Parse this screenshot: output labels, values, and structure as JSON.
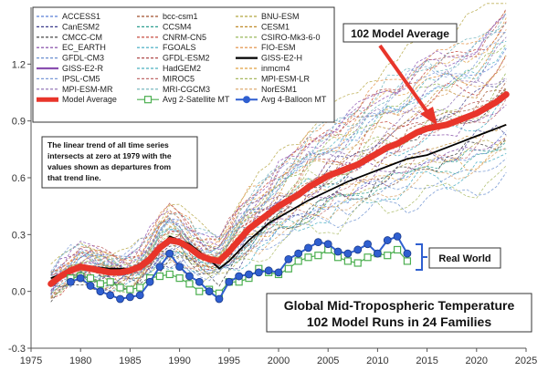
{
  "chart_data": {
    "type": "line",
    "title": "Global Mid-Tropospheric Temperature",
    "subtitle": "102 Model Runs in 24 Families",
    "xlabel": "",
    "ylabel": "",
    "xlim": [
      1975,
      2025
    ],
    "ylim": [
      -0.3,
      1.5
    ],
    "x_ticks": [
      1975,
      1980,
      1985,
      1990,
      1995,
      2000,
      2005,
      2010,
      2015,
      2020,
      2025
    ],
    "y_ticks": [
      -0.3,
      0.0,
      0.3,
      0.6,
      0.9,
      1.2
    ],
    "y_tick_labels": [
      "-0.3",
      "0.0",
      "0.3",
      "0.6",
      "0.9",
      "1.2"
    ],
    "grid": false,
    "note": "The linear trend of all time series intersects at zero at 1979 with the values shown as departures from that trend line.",
    "note_lines": [
      "The linear trend of all time series",
      "intersects at zero at 1979 with the",
      "values shown as departures from",
      "that trend line."
    ],
    "annotations": {
      "model_average_label": "102 Model Average",
      "real_world_label": "Real World"
    },
    "legend_entries": [
      {
        "name": "ACCESS1",
        "color": "#5b7fd6",
        "style": "dashed"
      },
      {
        "name": "bcc-csm1",
        "color": "#a0522d",
        "style": "dashed"
      },
      {
        "name": "BNU-ESM",
        "color": "#b5a642",
        "style": "dashed"
      },
      {
        "name": "CanESM2",
        "color": "#3a3a8a",
        "style": "dashed"
      },
      {
        "name": "CCSM4",
        "color": "#2a9d8f",
        "style": "dashed"
      },
      {
        "name": "CESM1",
        "color": "#c08a2a",
        "style": "dashed"
      },
      {
        "name": "CMCC-CM",
        "color": "#333333",
        "style": "dashed"
      },
      {
        "name": "CNRM-CN5",
        "color": "#c0392b",
        "style": "dashed"
      },
      {
        "name": "CSIRO-Mk3-6-0",
        "color": "#8db04a",
        "style": "dashed"
      },
      {
        "name": "EC_EARTH",
        "color": "#7b3fa0",
        "style": "dashed"
      },
      {
        "name": "FGOALS",
        "color": "#3aa8c0",
        "style": "dashed"
      },
      {
        "name": "FIO-ESM",
        "color": "#e08a3a",
        "style": "dashed"
      },
      {
        "name": "GFDL-CM3",
        "color": "#6a8fd0",
        "style": "dashed"
      },
      {
        "name": "GFDL-ESM2",
        "color": "#b04a4a",
        "style": "dashed"
      },
      {
        "name": "GISS-E2-H",
        "color": "#000000",
        "style": "solid"
      },
      {
        "name": "GISS-E2-R",
        "color": "#8a4fb0",
        "style": "solid"
      },
      {
        "name": "HadGEM2",
        "color": "#4ab0c0",
        "style": "dashed"
      },
      {
        "name": "inmcm4",
        "color": "#e0a040",
        "style": "dashed"
      },
      {
        "name": "IPSL-CM5",
        "color": "#7a9ad8",
        "style": "dashed"
      },
      {
        "name": "MIROC5",
        "color": "#c06a6a",
        "style": "dashed"
      },
      {
        "name": "MPI-ESM-LR",
        "color": "#a8b860",
        "style": "dashed"
      },
      {
        "name": "MPI-ESM-MR",
        "color": "#8a6ab0",
        "style": "dashed"
      },
      {
        "name": "MRI-CGCM3",
        "color": "#6ab0b8",
        "style": "dashed"
      },
      {
        "name": "NorESM1",
        "color": "#d8a060",
        "style": "dashed"
      },
      {
        "name": "Model Average",
        "color": "#e8352a",
        "style": "thick"
      },
      {
        "name": "Avg 2-Satellite MT",
        "color": "#4caf50",
        "style": "square"
      },
      {
        "name": "Avg 4-Balloon MT",
        "color": "#2f5fd0",
        "style": "circle"
      }
    ],
    "series": [
      {
        "name": "Model Average",
        "color": "#e8352a",
        "x": [
          1977,
          1978,
          1979,
          1980,
          1981,
          1982,
          1983,
          1984,
          1985,
          1986,
          1987,
          1988,
          1989,
          1990,
          1991,
          1992,
          1993,
          1994,
          1995,
          1996,
          1997,
          1998,
          1999,
          2000,
          2001,
          2002,
          2003,
          2004,
          2005,
          2006,
          2007,
          2008,
          2009,
          2010,
          2011,
          2012,
          2013,
          2014,
          2015,
          2016,
          2017,
          2018,
          2019,
          2020,
          2021,
          2022,
          2023
        ],
        "values": [
          0.04,
          0.08,
          0.11,
          0.13,
          0.12,
          0.11,
          0.1,
          0.1,
          0.11,
          0.13,
          0.17,
          0.23,
          0.27,
          0.26,
          0.23,
          0.19,
          0.17,
          0.16,
          0.21,
          0.27,
          0.33,
          0.37,
          0.41,
          0.45,
          0.48,
          0.51,
          0.55,
          0.58,
          0.61,
          0.63,
          0.65,
          0.67,
          0.7,
          0.73,
          0.76,
          0.78,
          0.81,
          0.84,
          0.86,
          0.87,
          0.88,
          0.9,
          0.92,
          0.94,
          0.97,
          1.0,
          1.04
        ]
      },
      {
        "name": "GISS-E2-H",
        "color": "#000000",
        "x": [
          1977,
          1979,
          1981,
          1983,
          1985,
          1987,
          1989,
          1991,
          1993,
          1994,
          1995,
          1997,
          1999,
          2001,
          2003,
          2005,
          2007,
          2009,
          2011,
          2013,
          2015,
          2017,
          2019,
          2021,
          2023
        ],
        "values": [
          0.07,
          0.11,
          0.13,
          0.12,
          0.12,
          0.17,
          0.29,
          0.25,
          0.17,
          0.12,
          0.16,
          0.27,
          0.36,
          0.42,
          0.48,
          0.53,
          0.58,
          0.62,
          0.66,
          0.7,
          0.72,
          0.76,
          0.8,
          0.84,
          0.88
        ]
      },
      {
        "name": "Avg 2-Satellite MT",
        "color": "#4caf50",
        "x": [
          1979,
          1980,
          1981,
          1982,
          1983,
          1984,
          1985,
          1986,
          1987,
          1988,
          1989,
          1990,
          1991,
          1992,
          1993,
          1994,
          1995,
          1996,
          1997,
          1998,
          1999,
          2000,
          2001,
          2002,
          2003,
          2004,
          2005,
          2006,
          2007,
          2008,
          2009,
          2010,
          2011,
          2012,
          2013
        ],
        "values": [
          0.07,
          0.08,
          0.07,
          0.04,
          0.05,
          0.02,
          0.01,
          0.02,
          0.07,
          0.08,
          0.09,
          0.07,
          0.04,
          0.0,
          0.01,
          -0.01,
          0.05,
          0.05,
          0.07,
          0.12,
          0.1,
          0.09,
          0.12,
          0.16,
          0.18,
          0.19,
          0.22,
          0.18,
          0.16,
          0.15,
          0.18,
          0.2,
          0.19,
          0.22,
          0.16
        ]
      },
      {
        "name": "Avg 4-Balloon MT",
        "color": "#2f5fd0",
        "x": [
          1979,
          1980,
          1981,
          1982,
          1983,
          1984,
          1985,
          1986,
          1987,
          1988,
          1989,
          1990,
          1991,
          1992,
          1993,
          1994,
          1995,
          1996,
          1997,
          1998,
          1999,
          2000,
          2001,
          2002,
          2003,
          2004,
          2005,
          2006,
          2007,
          2008,
          2009,
          2010,
          2011,
          2012,
          2013
        ],
        "values": [
          0.05,
          0.07,
          0.03,
          0.0,
          -0.02,
          -0.04,
          -0.03,
          -0.02,
          0.05,
          0.13,
          0.2,
          0.13,
          0.08,
          0.05,
          0.0,
          -0.04,
          0.05,
          0.08,
          0.09,
          0.1,
          0.11,
          0.1,
          0.17,
          0.2,
          0.23,
          0.26,
          0.25,
          0.21,
          0.2,
          0.22,
          0.25,
          0.2,
          0.27,
          0.29,
          0.2
        ]
      }
    ]
  }
}
